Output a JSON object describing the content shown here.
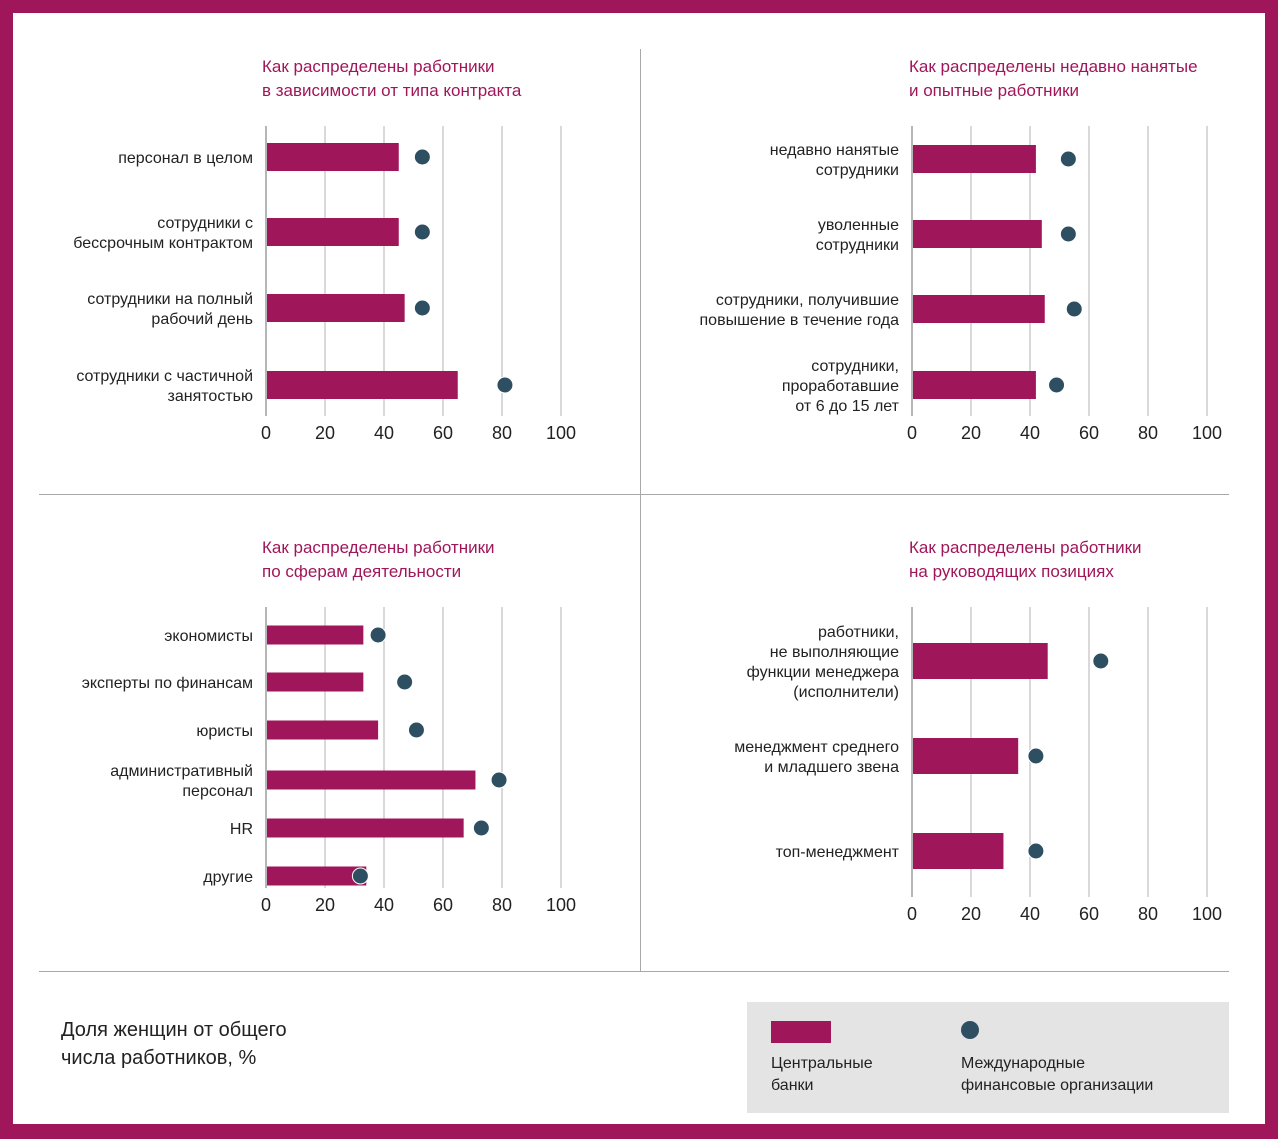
{
  "colors": {
    "central_banks": "#a0165a",
    "international_orgs": "#2e4f61",
    "frame": "#a0165a",
    "title": "#a0165a"
  },
  "caption": "Доля женщин от общего\nчисла работников, %",
  "legend": {
    "central_banks": "Центральные\nбанки",
    "international_orgs": "Международные\nфинансовые организации"
  },
  "chart_data": [
    {
      "type": "bar",
      "title": [
        "Как распределены работники",
        "в зависимости от типа контракта"
      ],
      "xlim": [
        0,
        100
      ],
      "ticks": [
        0,
        20,
        40,
        60,
        80,
        100
      ],
      "categories": [
        [
          "персонал в целом"
        ],
        [
          "сотрудники с",
          "бессрочным контрактом"
        ],
        [
          "сотрудники на полный",
          "рабочий день"
        ],
        [
          "сотрудники с частичной",
          "занятостью"
        ]
      ],
      "series": [
        {
          "name": "Центральные банки",
          "mark": "bar",
          "values": [
            45,
            45,
            47,
            65
          ]
        },
        {
          "name": "Международные финансовые организации",
          "mark": "dot",
          "values": [
            53,
            53,
            53,
            81
          ]
        }
      ]
    },
    {
      "type": "bar",
      "title": [
        "Как распределены недавно нанятые",
        "и опытные работники"
      ],
      "xlim": [
        0,
        100
      ],
      "ticks": [
        0,
        20,
        40,
        60,
        80,
        100
      ],
      "categories": [
        [
          "недавно нанятые",
          "сотрудники"
        ],
        [
          "уволенные",
          "сотрудники"
        ],
        [
          "сотрудники, получившие",
          "повышение в течение года"
        ],
        [
          "сотрудники,",
          "проработавшие",
          "от 6 до 15 лет"
        ]
      ],
      "series": [
        {
          "name": "Центральные банки",
          "mark": "bar",
          "values": [
            42,
            44,
            45,
            42
          ]
        },
        {
          "name": "Международные финансовые организации",
          "mark": "dot",
          "values": [
            53,
            53,
            55,
            49
          ]
        }
      ]
    },
    {
      "type": "bar",
      "title": [
        "Как распределены работники",
        "по сферам деятельности"
      ],
      "xlim": [
        0,
        100
      ],
      "ticks": [
        0,
        20,
        40,
        60,
        80,
        100
      ],
      "categories": [
        [
          "экономисты"
        ],
        [
          "эксперты по финансам"
        ],
        [
          "юристы"
        ],
        [
          "административный",
          "персонал"
        ],
        [
          "HR"
        ],
        [
          "другие"
        ]
      ],
      "series": [
        {
          "name": "Центральные банки",
          "mark": "bar",
          "values": [
            33,
            33,
            38,
            71,
            67,
            34
          ]
        },
        {
          "name": "Международные финансовые организации",
          "mark": "dot",
          "values": [
            38,
            47,
            51,
            79,
            73,
            32
          ]
        }
      ]
    },
    {
      "type": "bar",
      "title": [
        "Как распределены работники",
        "на руководящих позициях"
      ],
      "xlim": [
        0,
        100
      ],
      "ticks": [
        0,
        20,
        40,
        60,
        80,
        100
      ],
      "categories": [
        [
          "работники,",
          "не выполняющие",
          "функции менеджера",
          "(исполнители)"
        ],
        [
          "менеджмент среднего",
          "и младшего звена"
        ],
        [
          "топ-менеджмент"
        ]
      ],
      "series": [
        {
          "name": "Центральные банки",
          "mark": "bar",
          "values": [
            46,
            36,
            31
          ]
        },
        {
          "name": "Международные финансовые организации",
          "mark": "dot",
          "values": [
            64,
            42,
            42
          ]
        }
      ]
    }
  ]
}
